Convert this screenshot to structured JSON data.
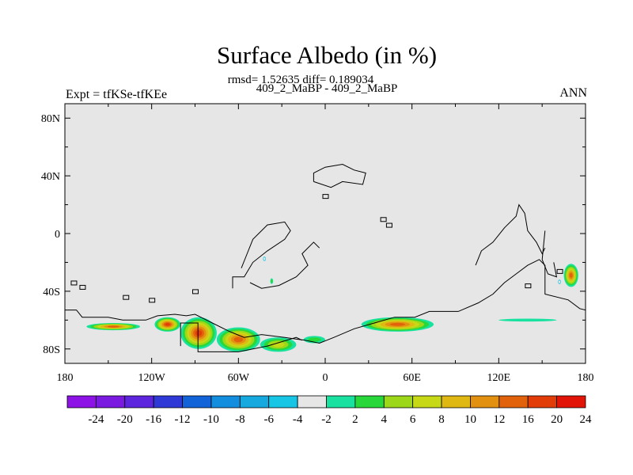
{
  "title": "Surface Albedo (in %)",
  "stats": "rmsd= 1.52635 diff= 0.189034",
  "case_label": "409_2_MaBP - 409_2_MaBP",
  "experiment": "Expt = tfKSe-tfKEe",
  "season": "ANN",
  "colors": {
    "background": "#e6e6e6",
    "coast": "#000000",
    "levels": [
      "#8d12e6",
      "#7a19e0",
      "#5d25dd",
      "#2f3ad6",
      "#1262d8",
      "#138dde",
      "#15a9df",
      "#17c6e4",
      "#e6e6e6",
      "#19e2a0",
      "#28d83b",
      "#9cd719",
      "#c7d817",
      "#dfb813",
      "#e29010",
      "#e2620c",
      "#e23d09",
      "#e21407"
    ]
  },
  "colorbar_labels": [
    "-24",
    "-20",
    "-16",
    "-12",
    "-10",
    "-8",
    "-6",
    "-4",
    "-2",
    "2",
    "4",
    "6",
    "8",
    "10",
    "12",
    "16",
    "20",
    "24"
  ],
  "chart_data": {
    "type": "heatmap",
    "title": "Surface Albedo (in %)",
    "projection": "cylindrical equidistant",
    "xlim": [
      -180,
      180
    ],
    "ylim": [
      -90,
      90
    ],
    "x_ticks": [
      -180,
      -120,
      -60,
      0,
      60,
      120,
      180
    ],
    "x_tick_labels": [
      "180",
      "120W",
      "60W",
      "0",
      "60E",
      "120E",
      "180"
    ],
    "y_ticks": [
      80,
      40,
      0,
      -40,
      -80
    ],
    "y_tick_labels": [
      "80N",
      "40N",
      "0",
      "40S",
      "80S"
    ],
    "levels": [
      -24,
      -20,
      -16,
      -12,
      -10,
      -8,
      -6,
      -4,
      -2,
      2,
      4,
      6,
      8,
      10,
      12,
      16,
      20,
      24
    ],
    "background_value_range": [
      -2,
      2
    ],
    "anomaly_regions": [
      {
        "lon": [
          -165,
          -128
        ],
        "lat": [
          -67,
          -62
        ],
        "peak": 18
      },
      {
        "lon": [
          -118,
          -100
        ],
        "lat": [
          -68,
          -58
        ],
        "peak": 22
      },
      {
        "lon": [
          -100,
          -75
        ],
        "lat": [
          -80,
          -58
        ],
        "peak": 20
      },
      {
        "lon": [
          -75,
          -45
        ],
        "lat": [
          -82,
          -65
        ],
        "peak": 18
      },
      {
        "lon": [
          -45,
          -20
        ],
        "lat": [
          -82,
          -72
        ],
        "peak": 8
      },
      {
        "lon": [
          -15,
          0
        ],
        "lat": [
          -76,
          -71
        ],
        "peak": 5
      },
      {
        "lon": [
          25,
          75
        ],
        "lat": [
          -68,
          -58
        ],
        "peak": 16
      },
      {
        "lon": [
          120,
          160
        ],
        "lat": [
          -61,
          -59
        ],
        "peak": 3
      },
      {
        "lon": [
          165,
          175
        ],
        "lat": [
          -37,
          -21
        ],
        "peak": 16
      },
      {
        "lon": [
          -38,
          -36
        ],
        "lat": [
          -35,
          -31
        ],
        "peak": 5
      },
      {
        "lon": [
          -43,
          -41
        ],
        "lat": [
          -19,
          -16
        ],
        "peak": -5
      },
      {
        "lon": [
          161,
          163
        ],
        "lat": [
          -35,
          -32
        ],
        "peak": -5
      }
    ]
  }
}
